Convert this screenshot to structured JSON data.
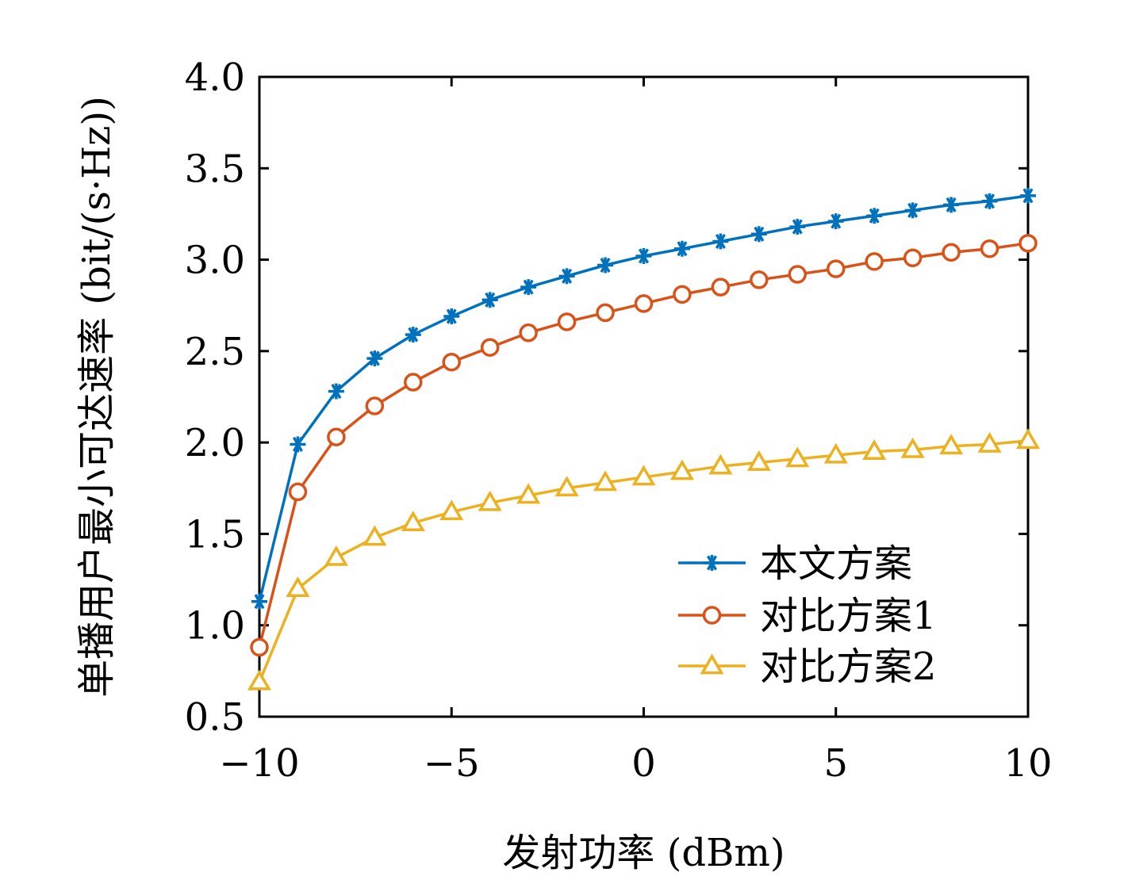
{
  "chart_data": {
    "type": "line",
    "xlabel": "发射功率 (dBm)",
    "ylabel": "单播用户最小可达速率 (bit/(s·Hz))",
    "xlim": [
      -10,
      10
    ],
    "ylim": [
      0.5,
      4.0
    ],
    "xticks": [
      -10,
      -5,
      0,
      5,
      10
    ],
    "xtick_labels": [
      "−10",
      "−5",
      "0",
      "5",
      "10"
    ],
    "yticks": [
      0.5,
      1.0,
      1.5,
      2.0,
      2.5,
      3.0,
      3.5,
      4.0
    ],
    "ytick_labels": [
      "0.5",
      "1.0",
      "1.5",
      "2.0",
      "2.5",
      "3.0",
      "3.5",
      "4.0"
    ],
    "grid": false,
    "legend_position": "bottom-right",
    "x": [
      -10,
      -9,
      -8,
      -7,
      -6,
      -5,
      -4,
      -3,
      -2,
      -1,
      0,
      1,
      2,
      3,
      4,
      5,
      6,
      7,
      8,
      9,
      10
    ],
    "series": [
      {
        "name": "本文方案",
        "color": "#0072BD",
        "marker": "asterisk",
        "values": [
          1.13,
          1.99,
          2.28,
          2.46,
          2.59,
          2.69,
          2.78,
          2.85,
          2.91,
          2.97,
          3.02,
          3.06,
          3.1,
          3.14,
          3.18,
          3.21,
          3.24,
          3.27,
          3.3,
          3.32,
          3.35
        ]
      },
      {
        "name": "对比方案1",
        "color": "#D95319",
        "marker": "circle",
        "values": [
          0.88,
          1.73,
          2.03,
          2.2,
          2.33,
          2.44,
          2.52,
          2.6,
          2.66,
          2.71,
          2.76,
          2.81,
          2.85,
          2.89,
          2.92,
          2.95,
          2.99,
          3.01,
          3.04,
          3.06,
          3.09
        ]
      },
      {
        "name": "对比方案2",
        "color": "#EDB120",
        "marker": "triangle",
        "values": [
          0.69,
          1.2,
          1.37,
          1.48,
          1.56,
          1.62,
          1.67,
          1.71,
          1.75,
          1.78,
          1.81,
          1.84,
          1.87,
          1.89,
          1.91,
          1.93,
          1.95,
          1.96,
          1.98,
          1.99,
          2.01
        ]
      }
    ]
  }
}
